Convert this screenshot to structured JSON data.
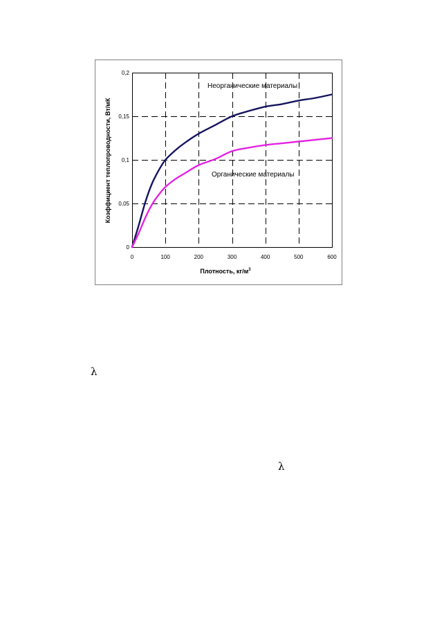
{
  "page": {
    "symbols": [
      "λ",
      "λ"
    ]
  },
  "colors": {
    "inorganic": "#15145f",
    "organic": "#e323e3",
    "grid": "#000000",
    "frame": "#808080",
    "plot_bg": "#ffffff"
  },
  "chart_data": {
    "type": "line",
    "title": "",
    "xlabel": "Плотность, кг/м",
    "xlabel_sup": "3",
    "ylabel": "Коэффициент теплопроводности, Вт/мК",
    "xlim": [
      0,
      600
    ],
    "ylim": [
      0,
      0.2
    ],
    "x_ticks": [
      0,
      100,
      200,
      300,
      400,
      500,
      600
    ],
    "x_tick_labels": [
      "0",
      "100",
      "200",
      "300",
      "400",
      "500",
      "600"
    ],
    "y_ticks": [
      0,
      0.05,
      0.1,
      0.15,
      0.2
    ],
    "y_tick_labels": [
      "0",
      "0,05",
      "0,1",
      "0,15",
      "0,2"
    ],
    "grid": true,
    "legend": "inline labels",
    "series": [
      {
        "name": "Неорганические материалы",
        "color": "#15145f",
        "points": [
          [
            0,
            0
          ],
          [
            20,
            0.025
          ],
          [
            40,
            0.052
          ],
          [
            60,
            0.073
          ],
          [
            80,
            0.088
          ],
          [
            100,
            0.1
          ],
          [
            130,
            0.111
          ],
          [
            160,
            0.12
          ],
          [
            200,
            0.13
          ],
          [
            250,
            0.14
          ],
          [
            300,
            0.15
          ],
          [
            350,
            0.156
          ],
          [
            400,
            0.161
          ],
          [
            450,
            0.164
          ],
          [
            500,
            0.168
          ],
          [
            550,
            0.171
          ],
          [
            600,
            0.175
          ]
        ]
      },
      {
        "name": "Органические материалы",
        "color": "#e323e3",
        "points": [
          [
            0,
            0
          ],
          [
            20,
            0.016
          ],
          [
            40,
            0.034
          ],
          [
            60,
            0.049
          ],
          [
            80,
            0.06
          ],
          [
            100,
            0.069
          ],
          [
            130,
            0.078
          ],
          [
            160,
            0.085
          ],
          [
            200,
            0.094
          ],
          [
            250,
            0.101
          ],
          [
            300,
            0.11
          ],
          [
            350,
            0.114
          ],
          [
            400,
            0.117
          ],
          [
            450,
            0.119
          ],
          [
            500,
            0.121
          ],
          [
            550,
            0.123
          ],
          [
            600,
            0.125
          ]
        ]
      }
    ]
  }
}
